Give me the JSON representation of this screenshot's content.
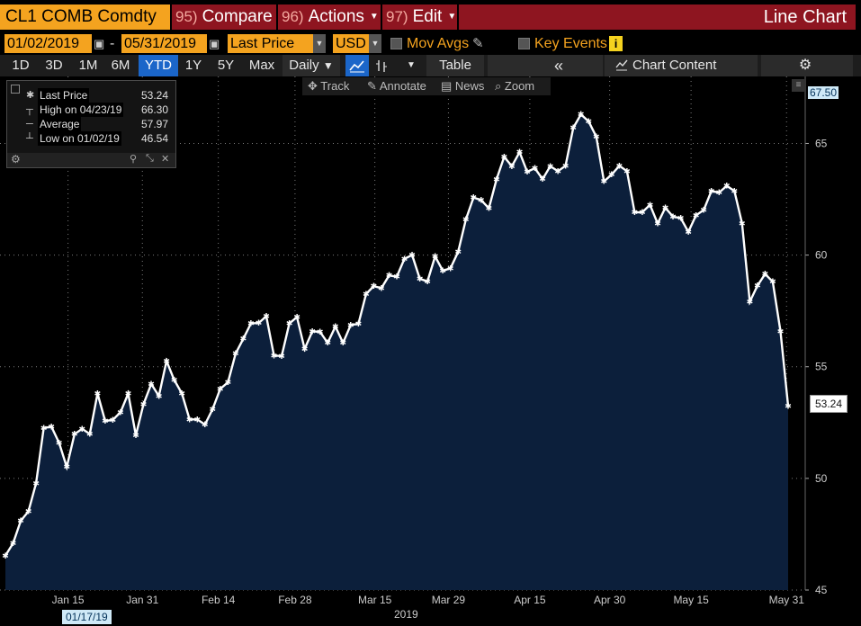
{
  "header": {
    "ticker": "CL1 COMB Comdty",
    "compare": {
      "num": "95)",
      "label": "Compare"
    },
    "actions": {
      "num": "96)",
      "label": "Actions"
    },
    "edit": {
      "num": "97)",
      "label": "Edit"
    },
    "chart_title": "Line Chart"
  },
  "settings": {
    "start_date": "01/02/2019",
    "date_sep": "-",
    "end_date": "05/31/2019",
    "field": "Last Price",
    "currency": "USD",
    "mov_avgs": "Mov Avgs",
    "key_events": "Key Events"
  },
  "toolbar": {
    "periods": [
      "1D",
      "3D",
      "1M",
      "6M",
      "YTD",
      "1Y",
      "5Y",
      "Max"
    ],
    "active_period": "YTD",
    "frequency": "Daily",
    "table": "Table",
    "chart_content": "Chart Content"
  },
  "chart_tools": {
    "track": "Track",
    "annotate": "Annotate",
    "news": "News",
    "zoom": "Zoom"
  },
  "legend": {
    "rows": [
      {
        "label": "Last Price",
        "value": "53.24"
      },
      {
        "label": "High on 04/23/19",
        "value": "66.30"
      },
      {
        "label": "Average",
        "value": "57.97"
      },
      {
        "label": "Low on 01/02/19",
        "value": "46.54"
      }
    ]
  },
  "colors": {
    "accent_orange": "#f4a31f",
    "header_red": "#8e1520",
    "area_fill": "#0c1f3b",
    "line": "#ffffff",
    "active_tab": "#1b66c9"
  },
  "chart_data": {
    "type": "area",
    "series": [
      {
        "name": "Last Price",
        "values": [
          46.54,
          47.09,
          48.1,
          48.52,
          49.78,
          52.26,
          52.31,
          51.59,
          50.51,
          51.98,
          52.22,
          51.99,
          53.8,
          52.57,
          52.62,
          52.96,
          53.8,
          51.93,
          53.32,
          54.23,
          53.69,
          55.26,
          54.41,
          53.8,
          52.64,
          52.64,
          52.41,
          53.1,
          54.01,
          54.3,
          55.59,
          56.25,
          56.94,
          56.96,
          57.26,
          55.5,
          55.48,
          56.94,
          57.22,
          55.8,
          56.59,
          56.56,
          56.07,
          56.8,
          56.07,
          56.87,
          56.92,
          58.26,
          58.61,
          58.52,
          59.09,
          59.03,
          59.83,
          60.0,
          58.94,
          58.82,
          59.94,
          59.3,
          59.41,
          60.14,
          61.59,
          62.58,
          62.46,
          62.1,
          63.39,
          64.4,
          63.98,
          64.61,
          63.73,
          63.89,
          63.4,
          63.98,
          63.76,
          64.0,
          65.7,
          66.3,
          65.99,
          65.3,
          63.3,
          63.6,
          64.0,
          63.76,
          61.91,
          61.92,
          62.25,
          61.42,
          62.12,
          61.72,
          61.66,
          61.04,
          61.78,
          62.02,
          62.87,
          62.8,
          63.1,
          62.87,
          61.42,
          57.91,
          58.63,
          59.15,
          58.81,
          56.59,
          53.24
        ]
      }
    ],
    "x_ticks": [
      "Jan 15",
      "Jan 31",
      "Feb 14",
      "Feb 28",
      "Mar 15",
      "Mar 29",
      "Apr 15",
      "Apr 30",
      "May 15",
      "May 31"
    ],
    "x_year_label": "2019",
    "x_start_label": "01/17/19",
    "y_ticks": [
      "45",
      "50",
      "55",
      "60",
      "65"
    ],
    "ylim": [
      45,
      68
    ],
    "last_value_label": "53.24",
    "top_value_label": "67.50",
    "grid": true
  }
}
